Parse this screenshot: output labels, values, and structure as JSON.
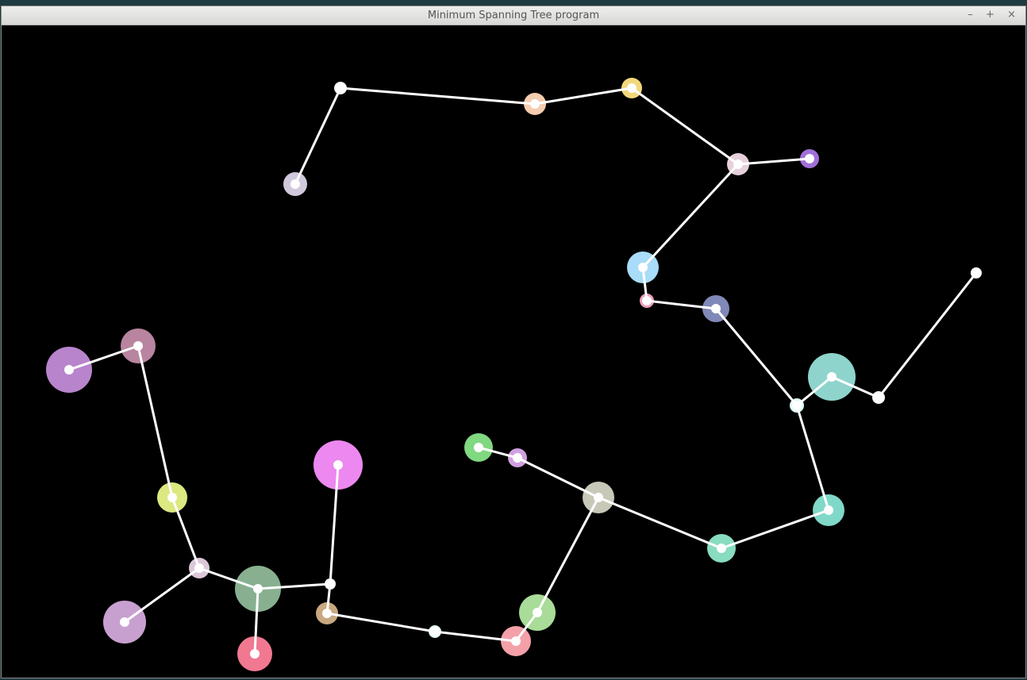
{
  "window": {
    "title": "Minimum Spanning Tree program",
    "buttons": [
      "–",
      "+",
      "×"
    ]
  }
}
